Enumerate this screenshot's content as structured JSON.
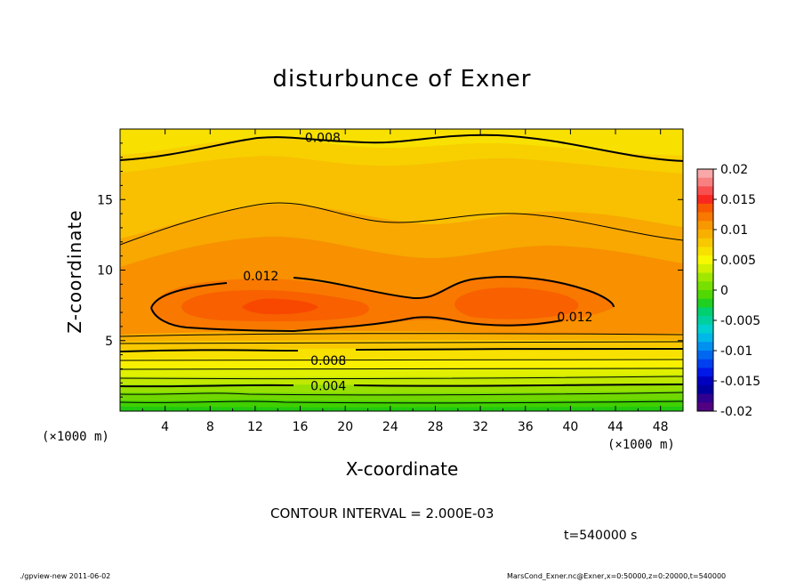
{
  "chart_data": {
    "type": "heatmap",
    "title": "disturbunce of Exner",
    "xlabel": "X-coordinate",
    "ylabel": "Z-coordinate",
    "x_unit_left": "(×1000 m)",
    "x_unit_right": "(×1000 m)",
    "xlim": [
      0,
      50
    ],
    "ylim": [
      0,
      20
    ],
    "x_ticks": [
      "4",
      "8",
      "12",
      "16",
      "20",
      "24",
      "28",
      "32",
      "36",
      "40",
      "44",
      "48"
    ],
    "x_tick_values": [
      4,
      8,
      12,
      16,
      20,
      24,
      28,
      32,
      36,
      40,
      44,
      48
    ],
    "y_ticks": [
      "5",
      "10",
      "15"
    ],
    "y_tick_values": [
      5,
      10,
      15
    ],
    "colorbar_ticks": [
      "0.02",
      "0.015",
      "0.01",
      "0.005",
      "0",
      "-0.005",
      "-0.01",
      "-0.015",
      "-0.02"
    ],
    "colorbar_values": [
      0.02,
      0.015,
      0.01,
      0.005,
      0,
      -0.005,
      -0.01,
      -0.015,
      -0.02
    ],
    "colorbar_colors": [
      "#f8a8a8",
      "#f88080",
      "#f85050",
      "#f82820",
      "#f85800",
      "#f87800",
      "#f89800",
      "#f8b000",
      "#f8c800",
      "#f8e000",
      "#f8f800",
      "#d0f000",
      "#a0e800",
      "#78e000",
      "#50d800",
      "#20d020",
      "#00d070",
      "#00d0a0",
      "#00d0d0",
      "#00b8e8",
      "#0090f0",
      "#0068f0",
      "#0040f0",
      "#0018e8",
      "#0000c0",
      "#0000a0",
      "#300090",
      "#500080"
    ],
    "contour_labels": [
      {
        "text": "0.008",
        "x": 18,
        "z": 19.4
      },
      {
        "text": "0.012",
        "x": 12.5,
        "z": 9.6
      },
      {
        "text": "0.012",
        "x": 40.4,
        "z": 6.7
      },
      {
        "text": "0.008",
        "x": 18.5,
        "z": 3.6
      },
      {
        "text": "0.004",
        "x": 18.5,
        "z": 1.8
      }
    ]
  },
  "texts": {
    "contour_interval": "CONTOUR INTERVAL = 2.000E-03",
    "time": "t=540000 s",
    "footer_left": "./gpview-new   2011-06-02",
    "footer_right": "MarsCond_Exner.nc@Exner,x=0:50000,z=0:20000,t=540000"
  }
}
